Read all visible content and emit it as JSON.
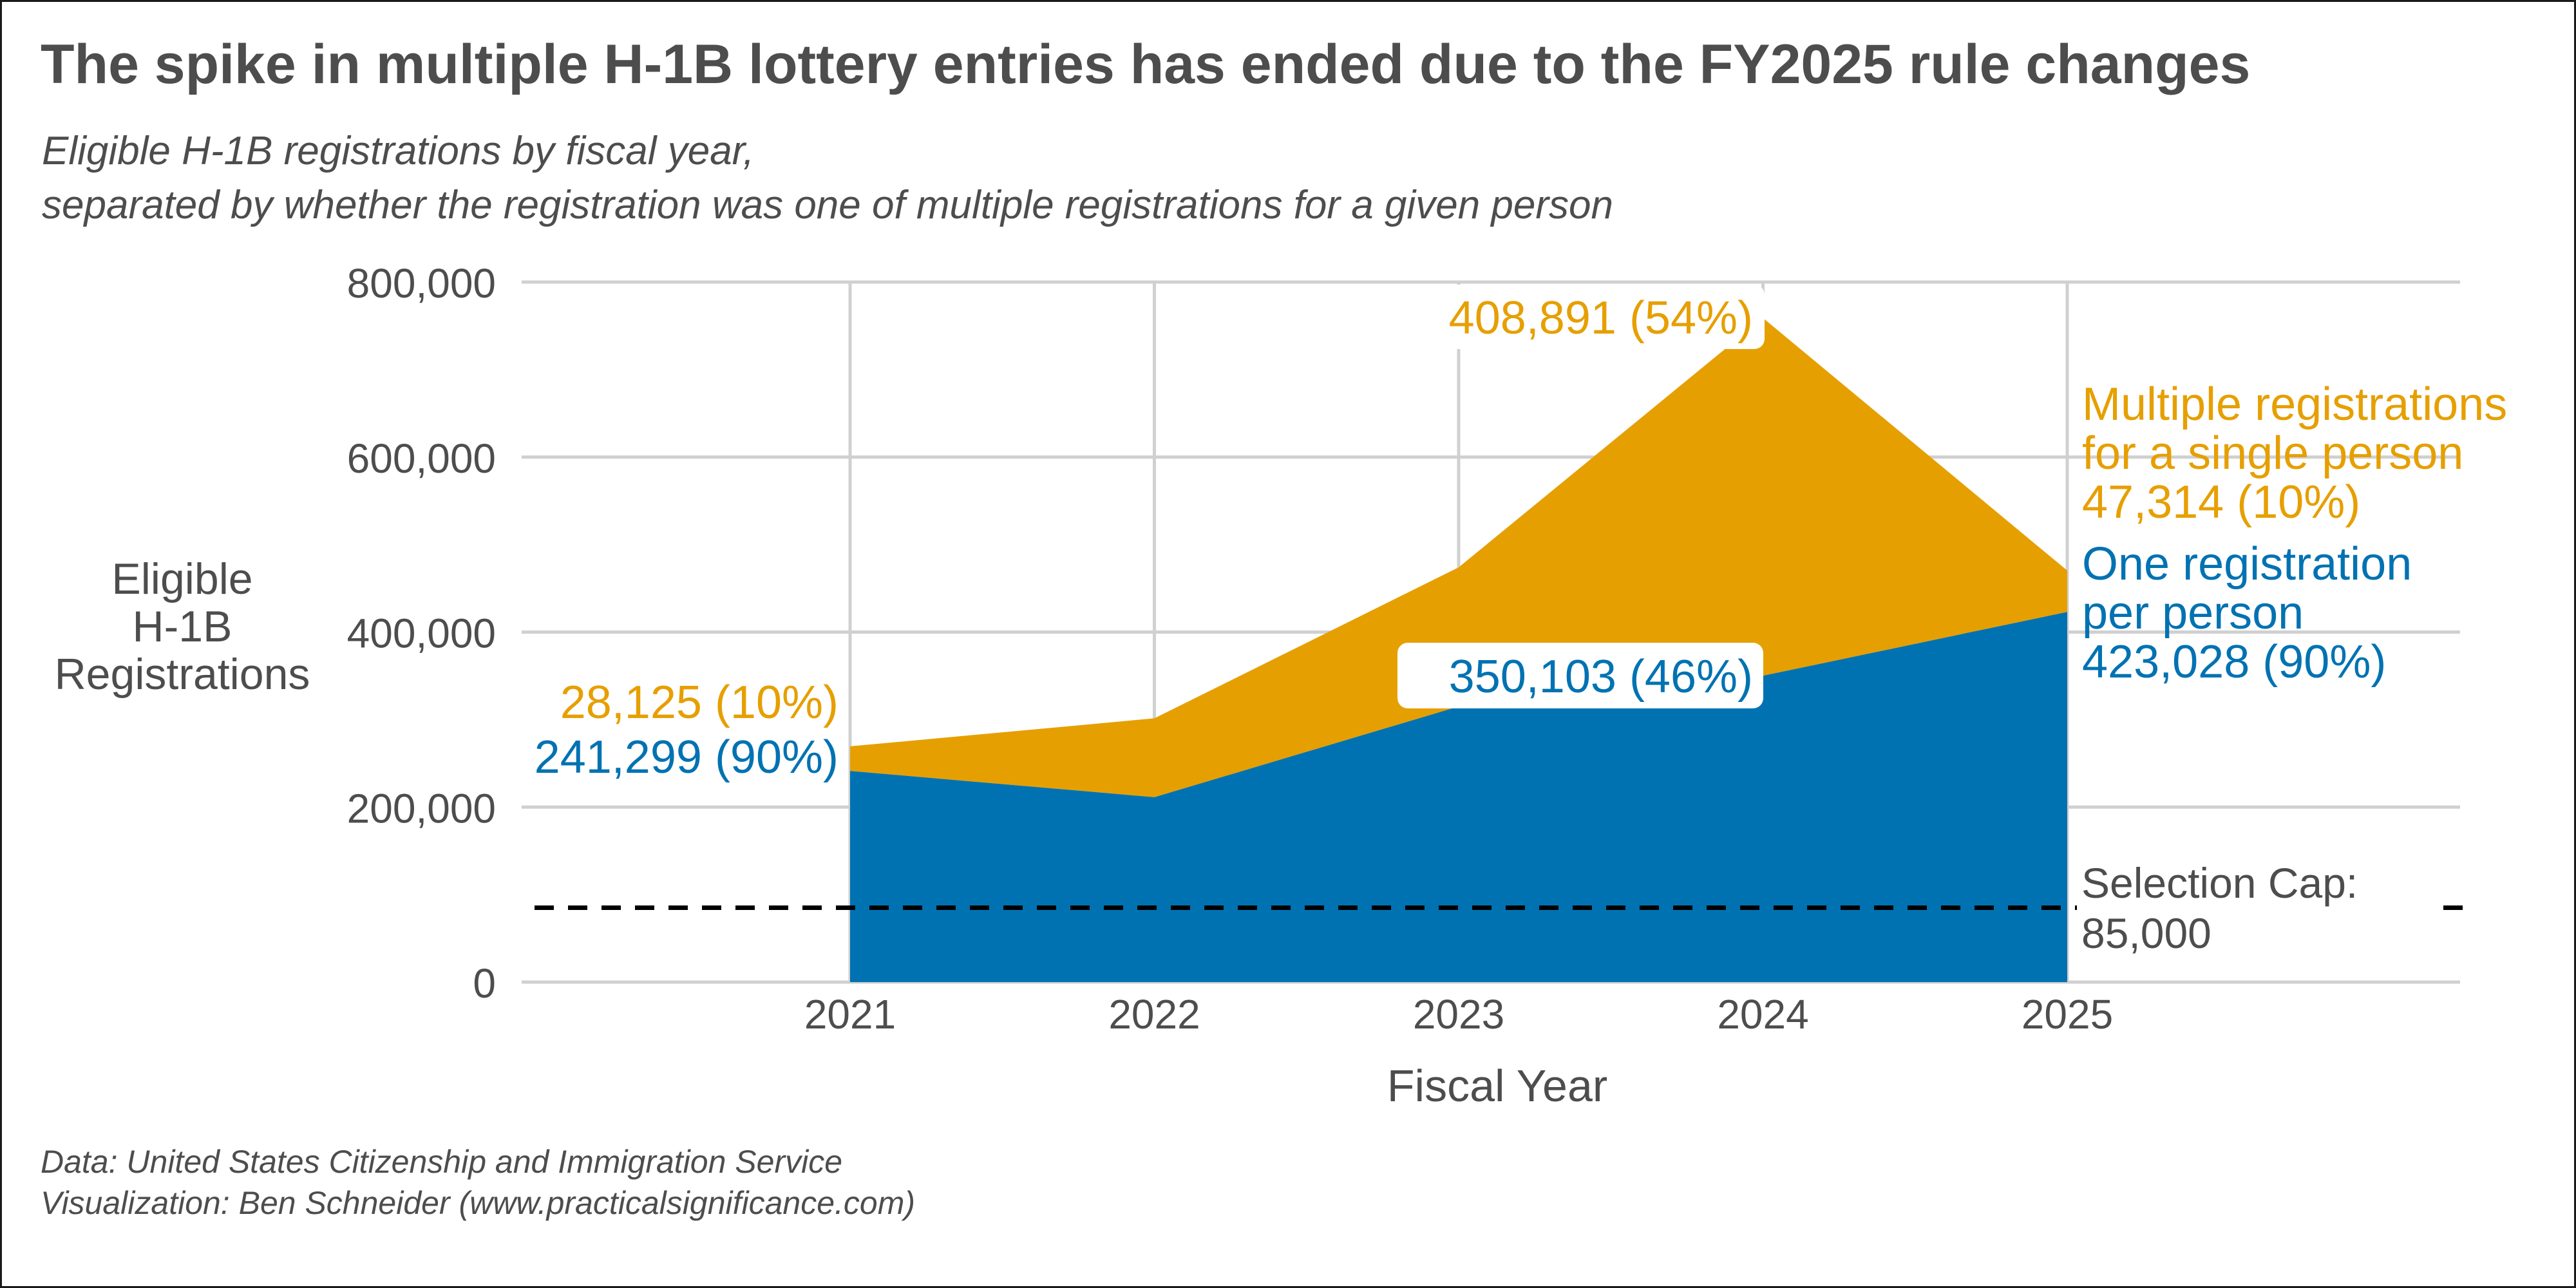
{
  "title": "The spike in multiple H-1B lottery entries has ended due to the FY2025 rule changes",
  "subtitle": [
    "Eligible H-1B registrations by fiscal year,",
    "separated by whether the registration was one of multiple registrations for a given person"
  ],
  "caption": [
    "Data: United States Citizenship and Immigration Service",
    "Visualization: Ben Schneider (www.practicalsignificance.com)"
  ],
  "colors": {
    "single": "#0072b2",
    "multiple": "#e69f00",
    "text": "#4d4d4d",
    "grid": "#d0d0d0"
  },
  "chart_data": {
    "type": "area",
    "stacked": true,
    "xlabel": "Fiscal Year",
    "ylabel": [
      "Eligible",
      "H-1B",
      "Registrations"
    ],
    "x": [
      2021,
      2022,
      2023,
      2024,
      2025
    ],
    "ylim": [
      0,
      800000
    ],
    "yticks": [
      0,
      200000,
      400000,
      600000,
      800000
    ],
    "ytick_labels": [
      "0",
      "200,000",
      "400,000",
      "600,000",
      "800,000"
    ],
    "xtick_labels": [
      "2021",
      "2022",
      "2023",
      "2024",
      "2025"
    ],
    "grid": true,
    "legend": "direct labels",
    "series": [
      {
        "key": "single",
        "values": [
          241299,
          211304,
          315000,
          350103,
          423028
        ]
      },
      {
        "key": "multiple",
        "values": [
          28125,
          90143,
          159000,
          408891,
          47314
        ]
      }
    ],
    "reference_line": {
      "value": 85000,
      "label": [
        "Selection Cap:",
        "85,000"
      ]
    },
    "annotations": {
      "fy2021_multiple": "28,125 (10%)",
      "fy2021_single": "241,299 (90%)",
      "fy2024_multiple": "408,891 (54%)",
      "fy2024_single": "350,103 (46%)",
      "fy2025_multiple": [
        "Multiple registrations",
        "for a single person",
        "47,314 (10%)"
      ],
      "fy2025_single": [
        "One registration",
        "per person",
        "423,028 (90%)"
      ]
    }
  }
}
